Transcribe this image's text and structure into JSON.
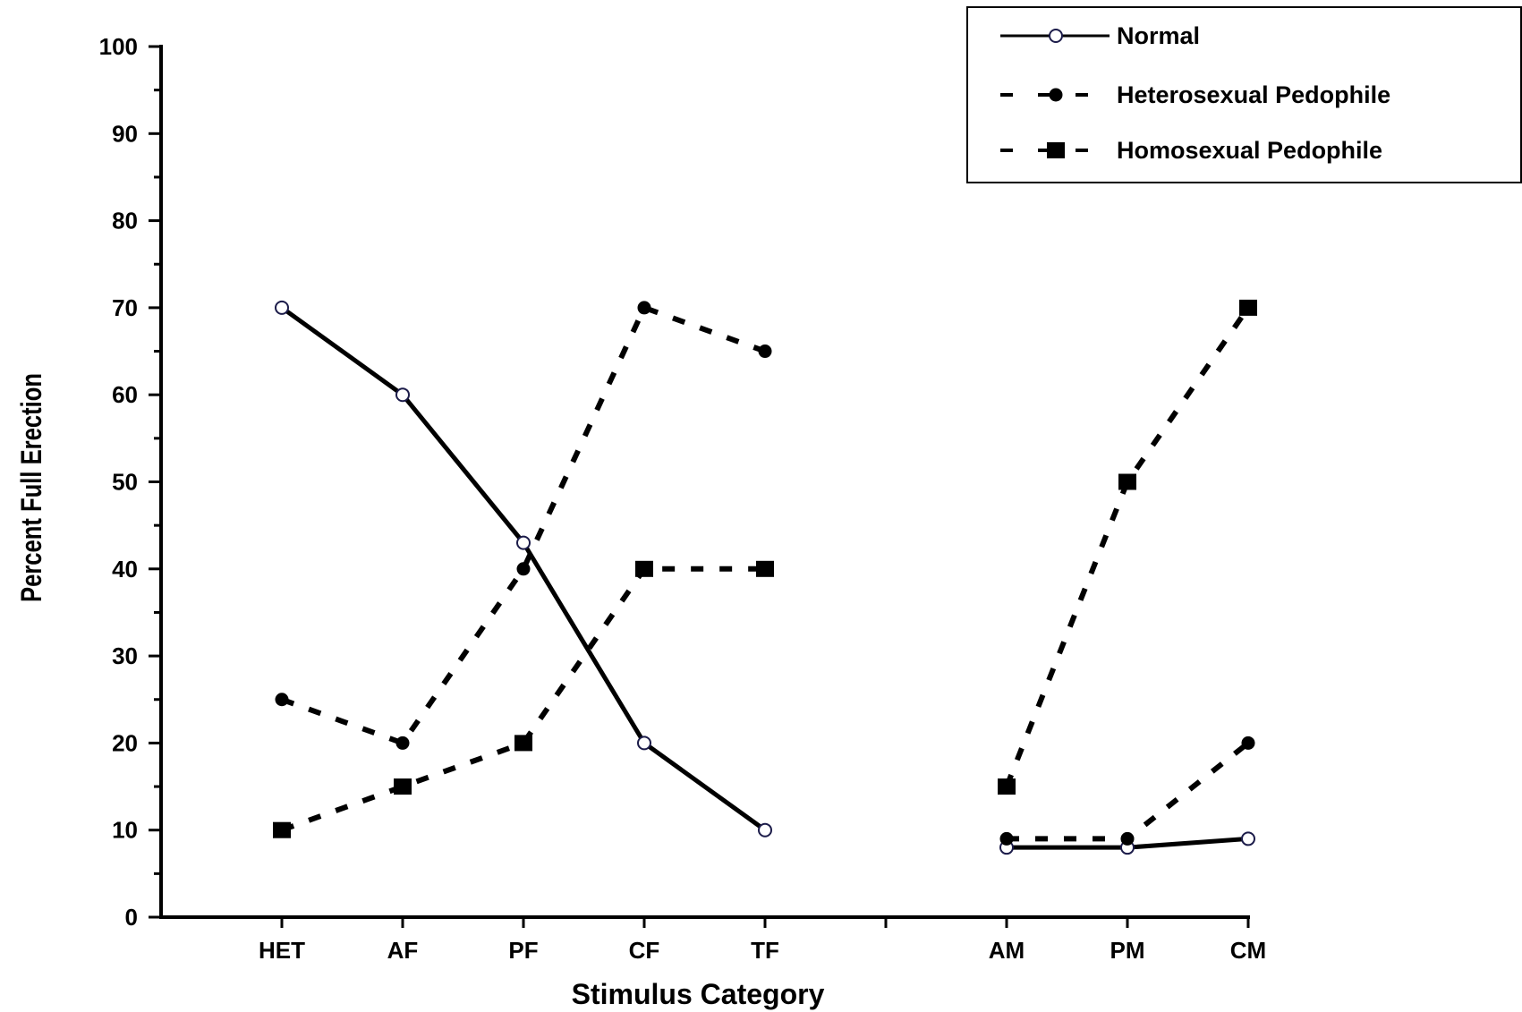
{
  "chart_data": {
    "type": "line",
    "xlabel": "Stimulus Category",
    "ylabel": "Percent Full Erection",
    "ylim": [
      0,
      100
    ],
    "yticks": [
      0,
      10,
      20,
      30,
      40,
      50,
      60,
      70,
      80,
      90,
      100
    ],
    "categories": [
      "HET",
      "AF",
      "PF",
      "CF",
      "TF",
      "",
      "AM",
      "PM",
      "CM"
    ],
    "legend_position": "top-right",
    "grid": false,
    "series": [
      {
        "name": "Normal",
        "line": "solid",
        "marker": "open-circle",
        "color": "#000000",
        "segments": [
          [
            [
              "HET",
              70
            ],
            [
              "AF",
              60
            ],
            [
              "PF",
              43
            ],
            [
              "CF",
              20
            ],
            [
              "TF",
              10
            ]
          ],
          [
            [
              "AM",
              8
            ],
            [
              "PM",
              8
            ],
            [
              "CM",
              9
            ]
          ]
        ]
      },
      {
        "name": "Heterosexual Pedophile",
        "line": "dashed",
        "marker": "filled-circle",
        "color": "#000000",
        "segments": [
          [
            [
              "HET",
              25
            ],
            [
              "AF",
              20
            ],
            [
              "PF",
              40
            ],
            [
              "CF",
              70
            ],
            [
              "TF",
              65
            ]
          ],
          [
            [
              "AM",
              9
            ],
            [
              "PM",
              9
            ],
            [
              "CM",
              20
            ]
          ]
        ]
      },
      {
        "name": "Homosexual Pedophile",
        "line": "dashed",
        "marker": "filled-square",
        "color": "#000000",
        "segments": [
          [
            [
              "HET",
              10
            ],
            [
              "AF",
              15
            ],
            [
              "PF",
              20
            ],
            [
              "CF",
              40
            ],
            [
              "TF",
              40
            ]
          ],
          [
            [
              "AM",
              15
            ],
            [
              "PM",
              50
            ],
            [
              "CM",
              70
            ]
          ]
        ]
      }
    ]
  }
}
